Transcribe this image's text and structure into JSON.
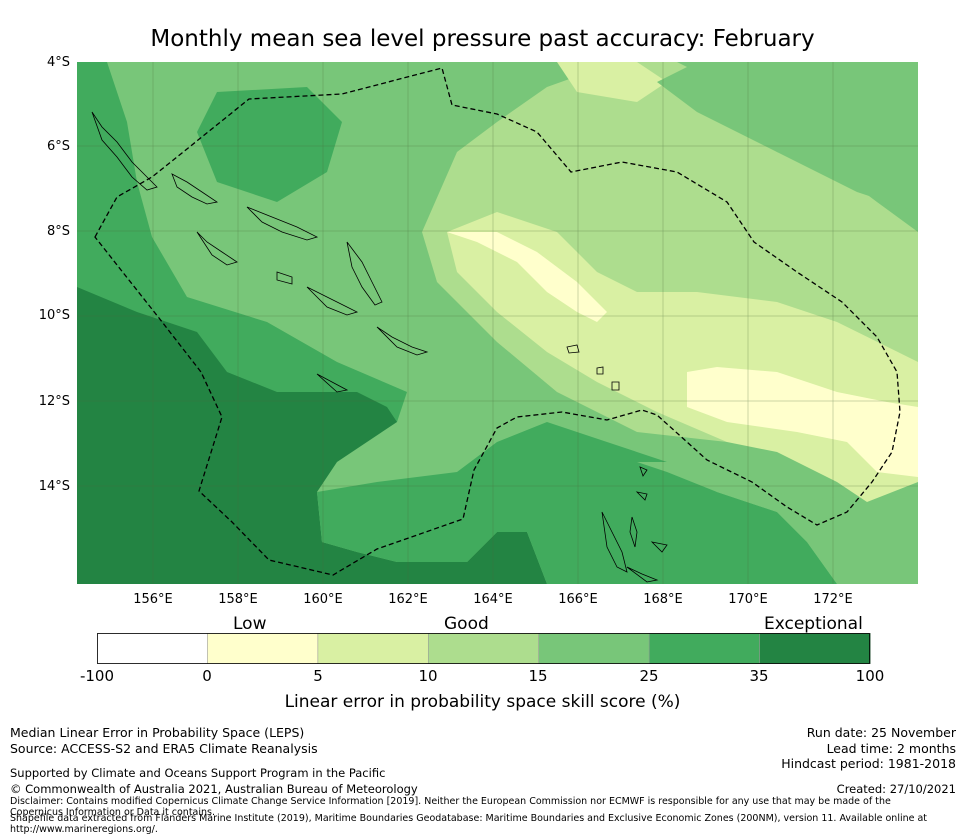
{
  "title": "Monthly mean sea level pressure past accuracy: February",
  "map": {
    "lat_labels": [
      "4°S",
      "6°S",
      "8°S",
      "10°S",
      "12°S",
      "14°S"
    ],
    "lon_labels": [
      "156°E",
      "158°E",
      "160°E",
      "162°E",
      "164°E",
      "166°E",
      "168°E",
      "170°E",
      "172°E"
    ],
    "extent": {
      "lon_min": 154.2,
      "lon_max": 174.0,
      "lat_min": -16.3,
      "lat_max": -4.0
    }
  },
  "legend": {
    "categories": [
      "Low",
      "Good",
      "Exceptional"
    ],
    "ticks": [
      "-100",
      "0",
      "5",
      "10",
      "15",
      "25",
      "35",
      "100"
    ],
    "colors": [
      "#ffffff",
      "#ffffcc",
      "#d9f0a3",
      "#addd8e",
      "#78c679",
      "#41ab5d",
      "#238443"
    ],
    "label": "Linear error in probability space skill score (%)"
  },
  "footer": {
    "left1": "Median Linear Error in Probability Space (LEPS)",
    "left2": "Source: ACCESS-S2 and ERA5 Climate Reanalysis",
    "support": "Supported by Climate and Oceans Support Program in the Pacific",
    "copyright": "© Commonwealth of Australia 2021, Australian Bureau of Meteorology",
    "disclaimer": "Disclaimer: Contains modified Copernicus Climate Change Service Information [2019]. Neither the European Commission nor ECMWF is responsible for any use that may be made of the Copernicus Information or Data it contains.",
    "shapefile": "Shapefile data extracted from Flanders Marine Institute (2019), Maritime Boundaries Geodatabase: Maritime Boundaries and Exclusive Economic Zones (200NM), version 11. Available online at http://www.marineregions.org/.",
    "run_date": "Run date: 25 November",
    "lead_time": "Lead time: 2 months",
    "hindcast": "Hindcast period: 1981-2018",
    "created": "Created: 27/10/2021"
  }
}
